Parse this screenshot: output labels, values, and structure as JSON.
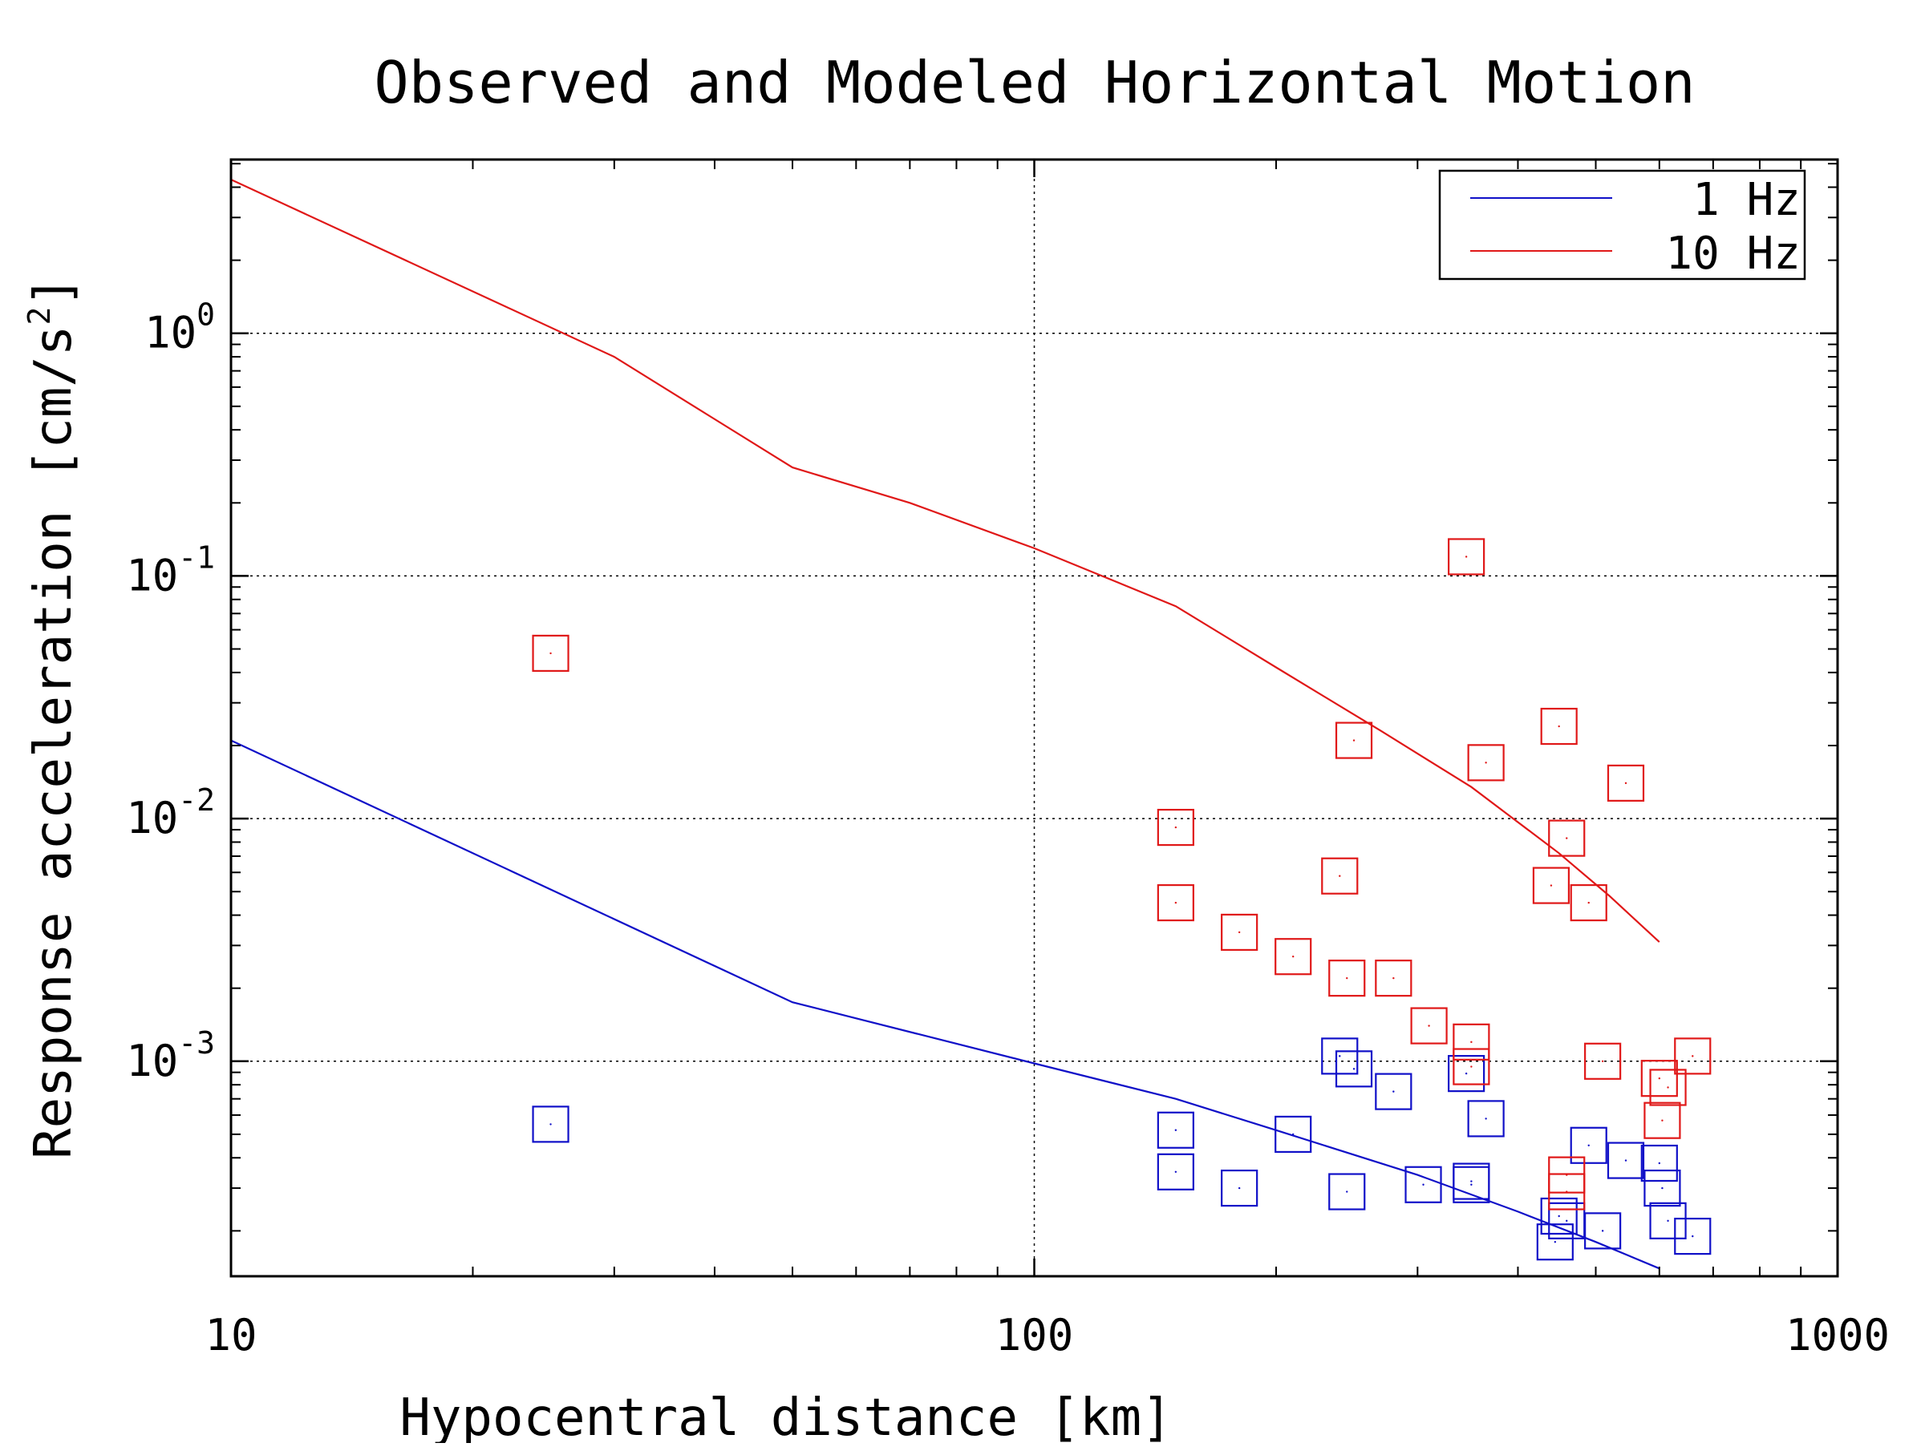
{
  "chart_data": {
    "type": "scatter",
    "title": "Observed and Modeled Horizontal Motion",
    "xlabel": "Hypocentral distance [km]",
    "ylabel_prefix": "Response acceleration [cm/s",
    "ylabel_sup": "2",
    "ylabel_suffix": "]",
    "x_scale": "log",
    "y_scale": "log",
    "xlim": [
      10,
      1000
    ],
    "ylim": [
      0.00013,
      5.2
    ],
    "grid": true,
    "legend_position": "top-right",
    "x_ticks": [
      {
        "value": 10,
        "label": "10"
      },
      {
        "value": 100,
        "label": "100"
      },
      {
        "value": 1000,
        "label": "1000"
      }
    ],
    "y_ticks": [
      {
        "value": 1,
        "base": "10",
        "exp": "0"
      },
      {
        "value": 0.1,
        "base": "10",
        "exp": "-1"
      },
      {
        "value": 0.01,
        "base": "10",
        "exp": "-2"
      },
      {
        "value": 0.001,
        "base": "10",
        "exp": "-3"
      }
    ],
    "series": [
      {
        "name": "1 Hz",
        "color": "#1010c8",
        "line": [
          [
            10,
            0.021
          ],
          [
            50,
            0.00175
          ],
          [
            100,
            0.00098
          ],
          [
            150,
            0.0007
          ],
          [
            200,
            0.00052
          ],
          [
            300,
            0.00034
          ],
          [
            400,
            0.00024
          ],
          [
            500,
            0.00018
          ],
          [
            600,
            0.00014
          ]
        ],
        "points": [
          [
            25,
            0.00055
          ],
          [
            150,
            0.00052
          ],
          [
            150,
            0.00035
          ],
          [
            180,
            0.0003
          ],
          [
            210,
            0.0005
          ],
          [
            240,
            0.00105
          ],
          [
            250,
            0.00093
          ],
          [
            245,
            0.00029
          ],
          [
            280,
            0.00075
          ],
          [
            305,
            0.00031
          ],
          [
            345,
            0.00089
          ],
          [
            350,
            0.00031
          ],
          [
            350,
            0.00032
          ],
          [
            365,
            0.00058
          ],
          [
            445,
            0.00018
          ],
          [
            450,
            0.00023
          ],
          [
            460,
            0.00022
          ],
          [
            490,
            0.00045
          ],
          [
            510,
            0.0002
          ],
          [
            545,
            0.00039
          ],
          [
            600,
            0.00038
          ],
          [
            605,
            0.0003
          ],
          [
            615,
            0.00022
          ],
          [
            660,
            0.00019
          ]
        ]
      },
      {
        "name": "10 Hz",
        "color": "#e01818",
        "line": [
          [
            10,
            4.3
          ],
          [
            30,
            0.8
          ],
          [
            50,
            0.28
          ],
          [
            70,
            0.2
          ],
          [
            100,
            0.13
          ],
          [
            150,
            0.075
          ],
          [
            200,
            0.042
          ],
          [
            270,
            0.023
          ],
          [
            350,
            0.0135
          ],
          [
            450,
            0.0072
          ],
          [
            520,
            0.0048
          ],
          [
            600,
            0.0031
          ]
        ],
        "points": [
          [
            25,
            0.048
          ],
          [
            150,
            0.0092
          ],
          [
            150,
            0.0045
          ],
          [
            180,
            0.0034
          ],
          [
            210,
            0.0027
          ],
          [
            240,
            0.0058
          ],
          [
            245,
            0.0022
          ],
          [
            250,
            0.021
          ],
          [
            280,
            0.0022
          ],
          [
            310,
            0.0014
          ],
          [
            345,
            0.12
          ],
          [
            350,
            0.0012
          ],
          [
            350,
            0.00095
          ],
          [
            365,
            0.017
          ],
          [
            440,
            0.0053
          ],
          [
            450,
            0.024
          ],
          [
            460,
            0.0083
          ],
          [
            460,
            0.00034
          ],
          [
            460,
            0.00029
          ],
          [
            490,
            0.0045
          ],
          [
            510,
            0.001
          ],
          [
            545,
            0.014
          ],
          [
            600,
            0.00085
          ],
          [
            605,
            0.00057
          ],
          [
            615,
            0.00078
          ],
          [
            660,
            0.00105
          ]
        ]
      }
    ]
  }
}
